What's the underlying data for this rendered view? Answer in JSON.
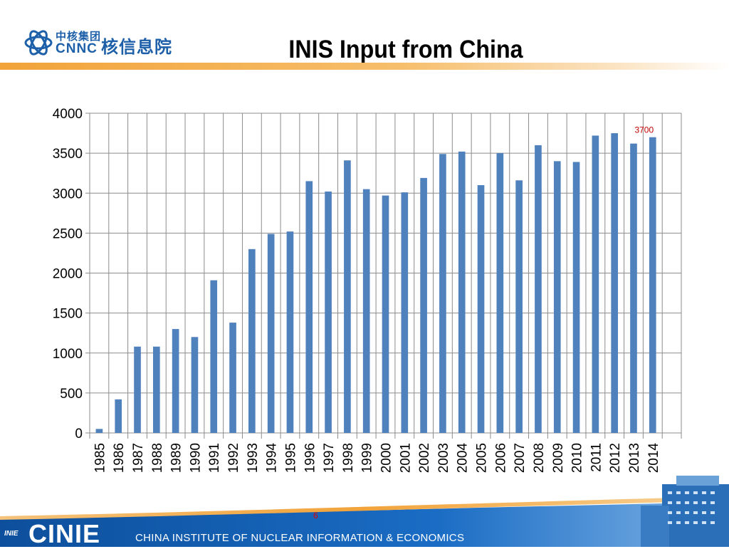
{
  "header": {
    "logo_cn_small": "中核集团",
    "logo_en": "CNNC",
    "logo_cn_big": "核信息院",
    "title": "INIS Input from China"
  },
  "footer": {
    "logo_small": "INIE",
    "logo_text": "CINIE",
    "org_name": "CHINA INSTITUTE OF NUCLEAR INFORMATION & ECONOMICS",
    "page_number": "6"
  },
  "colors": {
    "bar": "#4f81bd",
    "accent_orange": "#f2a33a",
    "footer_blue": "#1560b0",
    "data_label": "#c00000"
  },
  "chart_data": {
    "type": "bar",
    "title": "",
    "xlabel": "",
    "ylabel": "",
    "ylim": [
      0,
      4000
    ],
    "yticks": [
      0,
      500,
      1000,
      1500,
      2000,
      2500,
      3000,
      3500,
      4000
    ],
    "grid": true,
    "categories": [
      "1985",
      "1986",
      "1987",
      "1988",
      "1989",
      "1990",
      "1991",
      "1992",
      "1993",
      "1994",
      "1995",
      "1996",
      "1997",
      "1998",
      "1999",
      "2000",
      "2001",
      "2002",
      "2003",
      "2004",
      "2005",
      "2006",
      "2007",
      "2008",
      "2009",
      "2010",
      "2011",
      "2012",
      "2013",
      "2014"
    ],
    "values": [
      50,
      420,
      1080,
      1080,
      1300,
      1200,
      1910,
      1380,
      2300,
      2490,
      2520,
      3150,
      3020,
      3410,
      3050,
      2970,
      3010,
      3190,
      3490,
      3520,
      3100,
      3500,
      3160,
      3600,
      3400,
      3390,
      3720,
      3750,
      3620,
      3700
    ],
    "annotations": [
      {
        "category": "2014",
        "text": "3700"
      }
    ]
  }
}
